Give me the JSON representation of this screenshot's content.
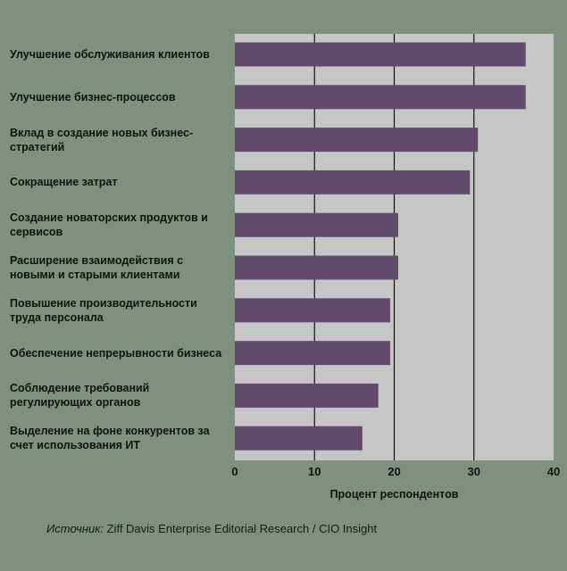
{
  "chart_data": {
    "type": "bar",
    "orientation": "horizontal",
    "categories": [
      "Улучшение обслуживания клиентов",
      "Улучшение бизнес-процессов",
      "Вклад в создание новых бизнес-стратегий",
      "Сокращение затрат",
      "Создание новаторских продуктов и сервисов",
      "Расширение взаимодействия с новыми и старыми клиентами",
      "Повышение производительности труда персонала",
      "Обеспечение непрерывности бизнеса",
      "Соблюдение требований регулирующих органов",
      "Выделение на фоне конкурентов за счет использования ИТ"
    ],
    "values": [
      36.5,
      36.5,
      30.5,
      29.5,
      20.5,
      20.5,
      19.5,
      19.5,
      18.0,
      16.0
    ],
    "xlabel": "Процент респондентов",
    "xlim": [
      0,
      40
    ],
    "xticks": [
      "0",
      "10",
      "20",
      "30",
      "40"
    ],
    "grid": true,
    "colors": {
      "bar": "#634b6e",
      "plot_bg": "#c6c6c6",
      "page_bg": "#7f8f80",
      "grid": "#111111"
    }
  },
  "source": {
    "prefix": "Источник:",
    "text": " Ziff Davis Enterprise Editorial Research / CIO Insight"
  }
}
